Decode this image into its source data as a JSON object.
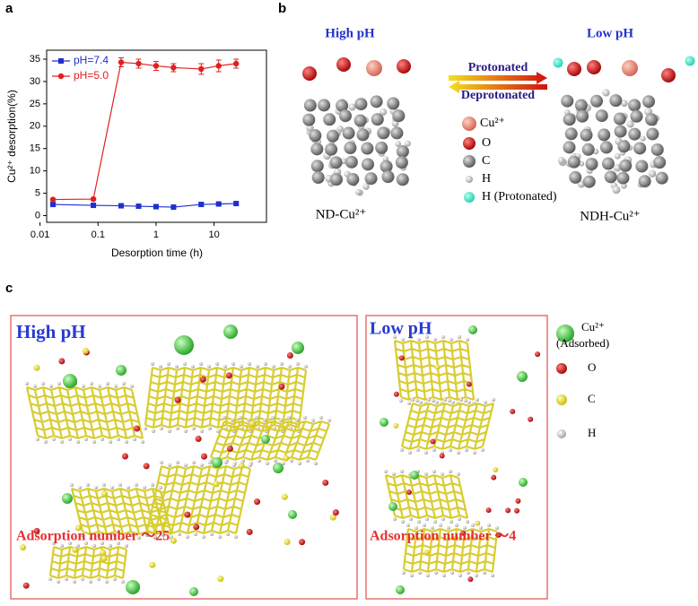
{
  "panel_labels": [
    "a",
    "b",
    "c"
  ],
  "chart_data": {
    "type": "line",
    "x_label": "Desorption time (h)",
    "y_label": "Cu²⁺ desorption(%)",
    "x": [
      0.0167,
      0.083,
      0.25,
      0.5,
      1,
      2,
      6,
      12,
      24
    ],
    "xlim": [
      0.013,
      80
    ],
    "xticks": [
      0.01,
      0.1,
      1,
      10
    ],
    "xscale": "log",
    "ylim": [
      -1.5,
      37
    ],
    "yticks": [
      0,
      5,
      10,
      15,
      20,
      25,
      30,
      35
    ],
    "legend": "upper left",
    "series": [
      {
        "name": "pH=7.4",
        "color": "#1f2fd0",
        "marker": "square",
        "values": [
          2.5,
          2.3,
          2.2,
          2.1,
          2.0,
          1.9,
          2.5,
          2.6,
          2.7
        ],
        "errors": [
          0.2,
          0.2,
          0.2,
          0.2,
          0.2,
          0.2,
          0.3,
          0.3,
          0.3
        ]
      },
      {
        "name": "pH=5.0",
        "color": "#e02020",
        "marker": "circle",
        "values": [
          3.6,
          3.7,
          34.3,
          34.0,
          33.5,
          33.1,
          32.8,
          33.5,
          34.0
        ],
        "errors": [
          0.2,
          0.2,
          1.0,
          1.0,
          1.0,
          0.9,
          1.2,
          1.3,
          1.0
        ]
      }
    ]
  },
  "panel_b": {
    "left_title": "High pH",
    "right_title": "Low pH",
    "arrow_top": "Protonated",
    "arrow_bottom": "Deprotonated",
    "legend": [
      "Cu²⁺",
      "O",
      "C",
      "H",
      "H (Protonated)"
    ],
    "left_label": "ND-Cu²⁺",
    "right_label": "NDH-Cu²⁺"
  },
  "panel_c": {
    "left_title": "High pH",
    "right_title": "Low pH",
    "left_note": "Adsorption number ～25",
    "right_note": "Adsorption number ～4",
    "legend": [
      "Cu²⁺",
      "O",
      "C",
      "H"
    ],
    "adsorbed_note": "(Adsorbed)"
  }
}
